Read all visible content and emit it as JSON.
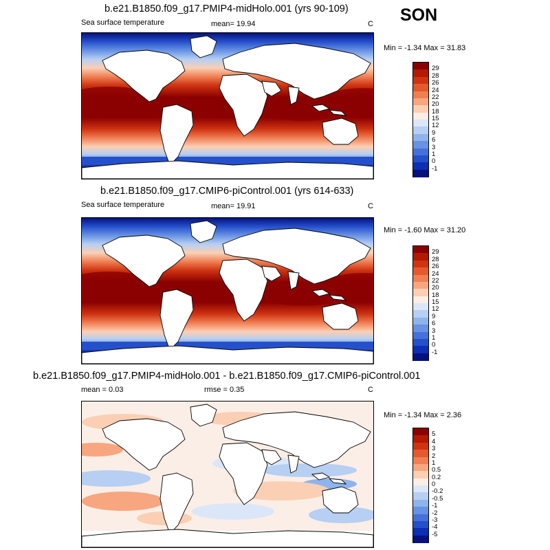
{
  "season": "SON",
  "panels": [
    {
      "title": "b.e21.B1850.f09_g17.PMIP4-midHolo.001 (yrs 90-109)",
      "left_label": "Sea surface temperature",
      "stat1": "mean=  19.94",
      "stat2": "",
      "units": "C",
      "minmax": "Min =  -1.34 Max =  31.83",
      "kind": "abs",
      "levels": [
        "29",
        "28",
        "26",
        "24",
        "22",
        "20",
        "18",
        "15",
        "12",
        "9",
        "6",
        "3",
        "1",
        "0",
        "-1"
      ],
      "colors": [
        "#8b0000",
        "#b31a00",
        "#cf3412",
        "#e35a2f",
        "#f07f54",
        "#f7a680",
        "#fbcfb4",
        "#fbeee6",
        "#dbe7f8",
        "#b6cff2",
        "#8eb4ec",
        "#6892e3",
        "#4671da",
        "#2550cc",
        "#0d2fb4",
        "#06117e"
      ]
    },
    {
      "title": "b.e21.B1850.f09_g17.CMIP6-piControl.001 (yrs 614-633)",
      "left_label": "Sea surface temperature",
      "stat1": "mean=  19.91",
      "stat2": "",
      "units": "C",
      "minmax": "Min =  -1.60 Max =  31.20",
      "kind": "abs",
      "levels": [
        "29",
        "28",
        "26",
        "24",
        "22",
        "20",
        "18",
        "15",
        "12",
        "9",
        "6",
        "3",
        "1",
        "0",
        "-1"
      ],
      "colors": [
        "#8b0000",
        "#b31a00",
        "#cf3412",
        "#e35a2f",
        "#f07f54",
        "#f7a680",
        "#fbcfb4",
        "#fbeee6",
        "#dbe7f8",
        "#b6cff2",
        "#8eb4ec",
        "#6892e3",
        "#4671da",
        "#2550cc",
        "#0d2fb4",
        "#06117e"
      ]
    },
    {
      "title": "b.e21.B1850.f09_g17.PMIP4-midHolo.001 - b.e21.B1850.f09_g17.CMIP6-piControl.001",
      "left_label": "mean =   0.03",
      "stat1": "rmse =   0.35",
      "stat2": "",
      "units": "C",
      "minmax": "Min =  -1.34 Max =   2.36",
      "kind": "diff",
      "levels": [
        "5",
        "4",
        "3",
        "2",
        "1",
        "0.5",
        "0.2",
        "0",
        "-0.2",
        "-0.5",
        "-1",
        "-2",
        "-3",
        "-4",
        "-5"
      ],
      "colors": [
        "#8b0000",
        "#b31a00",
        "#cf3412",
        "#e35a2f",
        "#f07f54",
        "#f7a680",
        "#fbcfb4",
        "#fbeee6",
        "#dbe7f8",
        "#b6cff2",
        "#8eb4ec",
        "#6892e3",
        "#4671da",
        "#2550cc",
        "#0d2fb4",
        "#06117e"
      ]
    }
  ]
}
